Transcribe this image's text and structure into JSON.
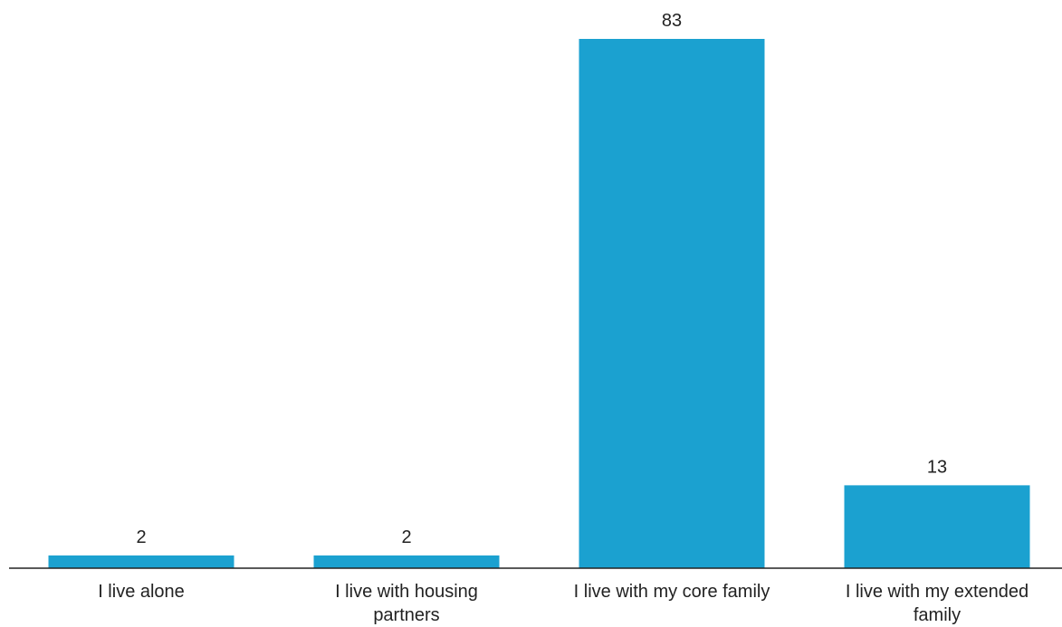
{
  "chart_data": {
    "type": "bar",
    "categories": [
      [
        "I live alone"
      ],
      [
        "I live with housing",
        "partners"
      ],
      [
        "I live with my core family"
      ],
      [
        "I live with my extended",
        "family"
      ]
    ],
    "values": [
      2,
      2,
      83,
      13
    ],
    "value_labels": [
      "2",
      "2",
      "83",
      "13"
    ],
    "ylim": [
      0,
      83
    ],
    "grid": false,
    "bar_color": "#1ba1d0",
    "axis_color": "#222222"
  }
}
